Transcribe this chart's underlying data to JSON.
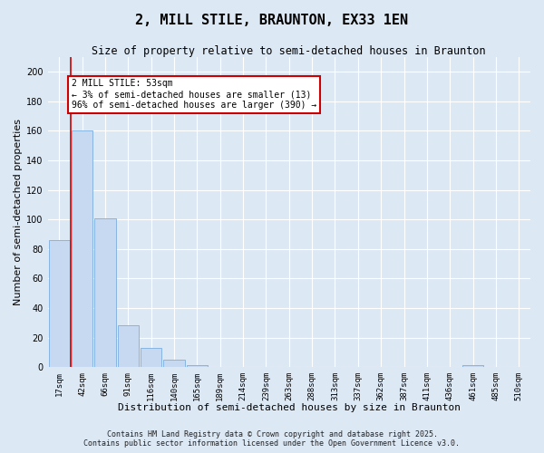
{
  "title": "2, MILL STILE, BRAUNTON, EX33 1EN",
  "subtitle": "Size of property relative to semi-detached houses in Braunton",
  "xlabel": "Distribution of semi-detached houses by size in Braunton",
  "ylabel": "Number of semi-detached properties",
  "bin_labels": [
    "17sqm",
    "42sqm",
    "66sqm",
    "91sqm",
    "116sqm",
    "140sqm",
    "165sqm",
    "189sqm",
    "214sqm",
    "239sqm",
    "263sqm",
    "288sqm",
    "313sqm",
    "337sqm",
    "362sqm",
    "387sqm",
    "411sqm",
    "436sqm",
    "461sqm",
    "485sqm",
    "510sqm"
  ],
  "bar_values": [
    86,
    160,
    101,
    28,
    13,
    5,
    1,
    0,
    0,
    0,
    0,
    0,
    0,
    0,
    0,
    0,
    0,
    0,
    1,
    0,
    0
  ],
  "bar_color": "#c6d9f0",
  "bar_edge_color": "#7aade0",
  "vline_color": "#cc0000",
  "vline_x": 0.5,
  "annotation_title": "2 MILL STILE: 53sqm",
  "annotation_line1": "← 3% of semi-detached houses are smaller (13)",
  "annotation_line2": "96% of semi-detached houses are larger (390) →",
  "annotation_box_facecolor": "#ffffff",
  "annotation_box_edgecolor": "#cc0000",
  "ylim": [
    0,
    210
  ],
  "yticks": [
    0,
    20,
    40,
    60,
    80,
    100,
    120,
    140,
    160,
    180,
    200
  ],
  "footer1": "Contains HM Land Registry data © Crown copyright and database right 2025.",
  "footer2": "Contains public sector information licensed under the Open Government Licence v3.0.",
  "bg_color": "#dde8f5",
  "grid_color": "#ffffff",
  "title_fontsize": 11,
  "subtitle_fontsize": 8.5,
  "ylabel_fontsize": 8,
  "xlabel_fontsize": 8,
  "tick_fontsize": 6.5,
  "annot_fontsize": 7,
  "footer_fontsize": 6
}
